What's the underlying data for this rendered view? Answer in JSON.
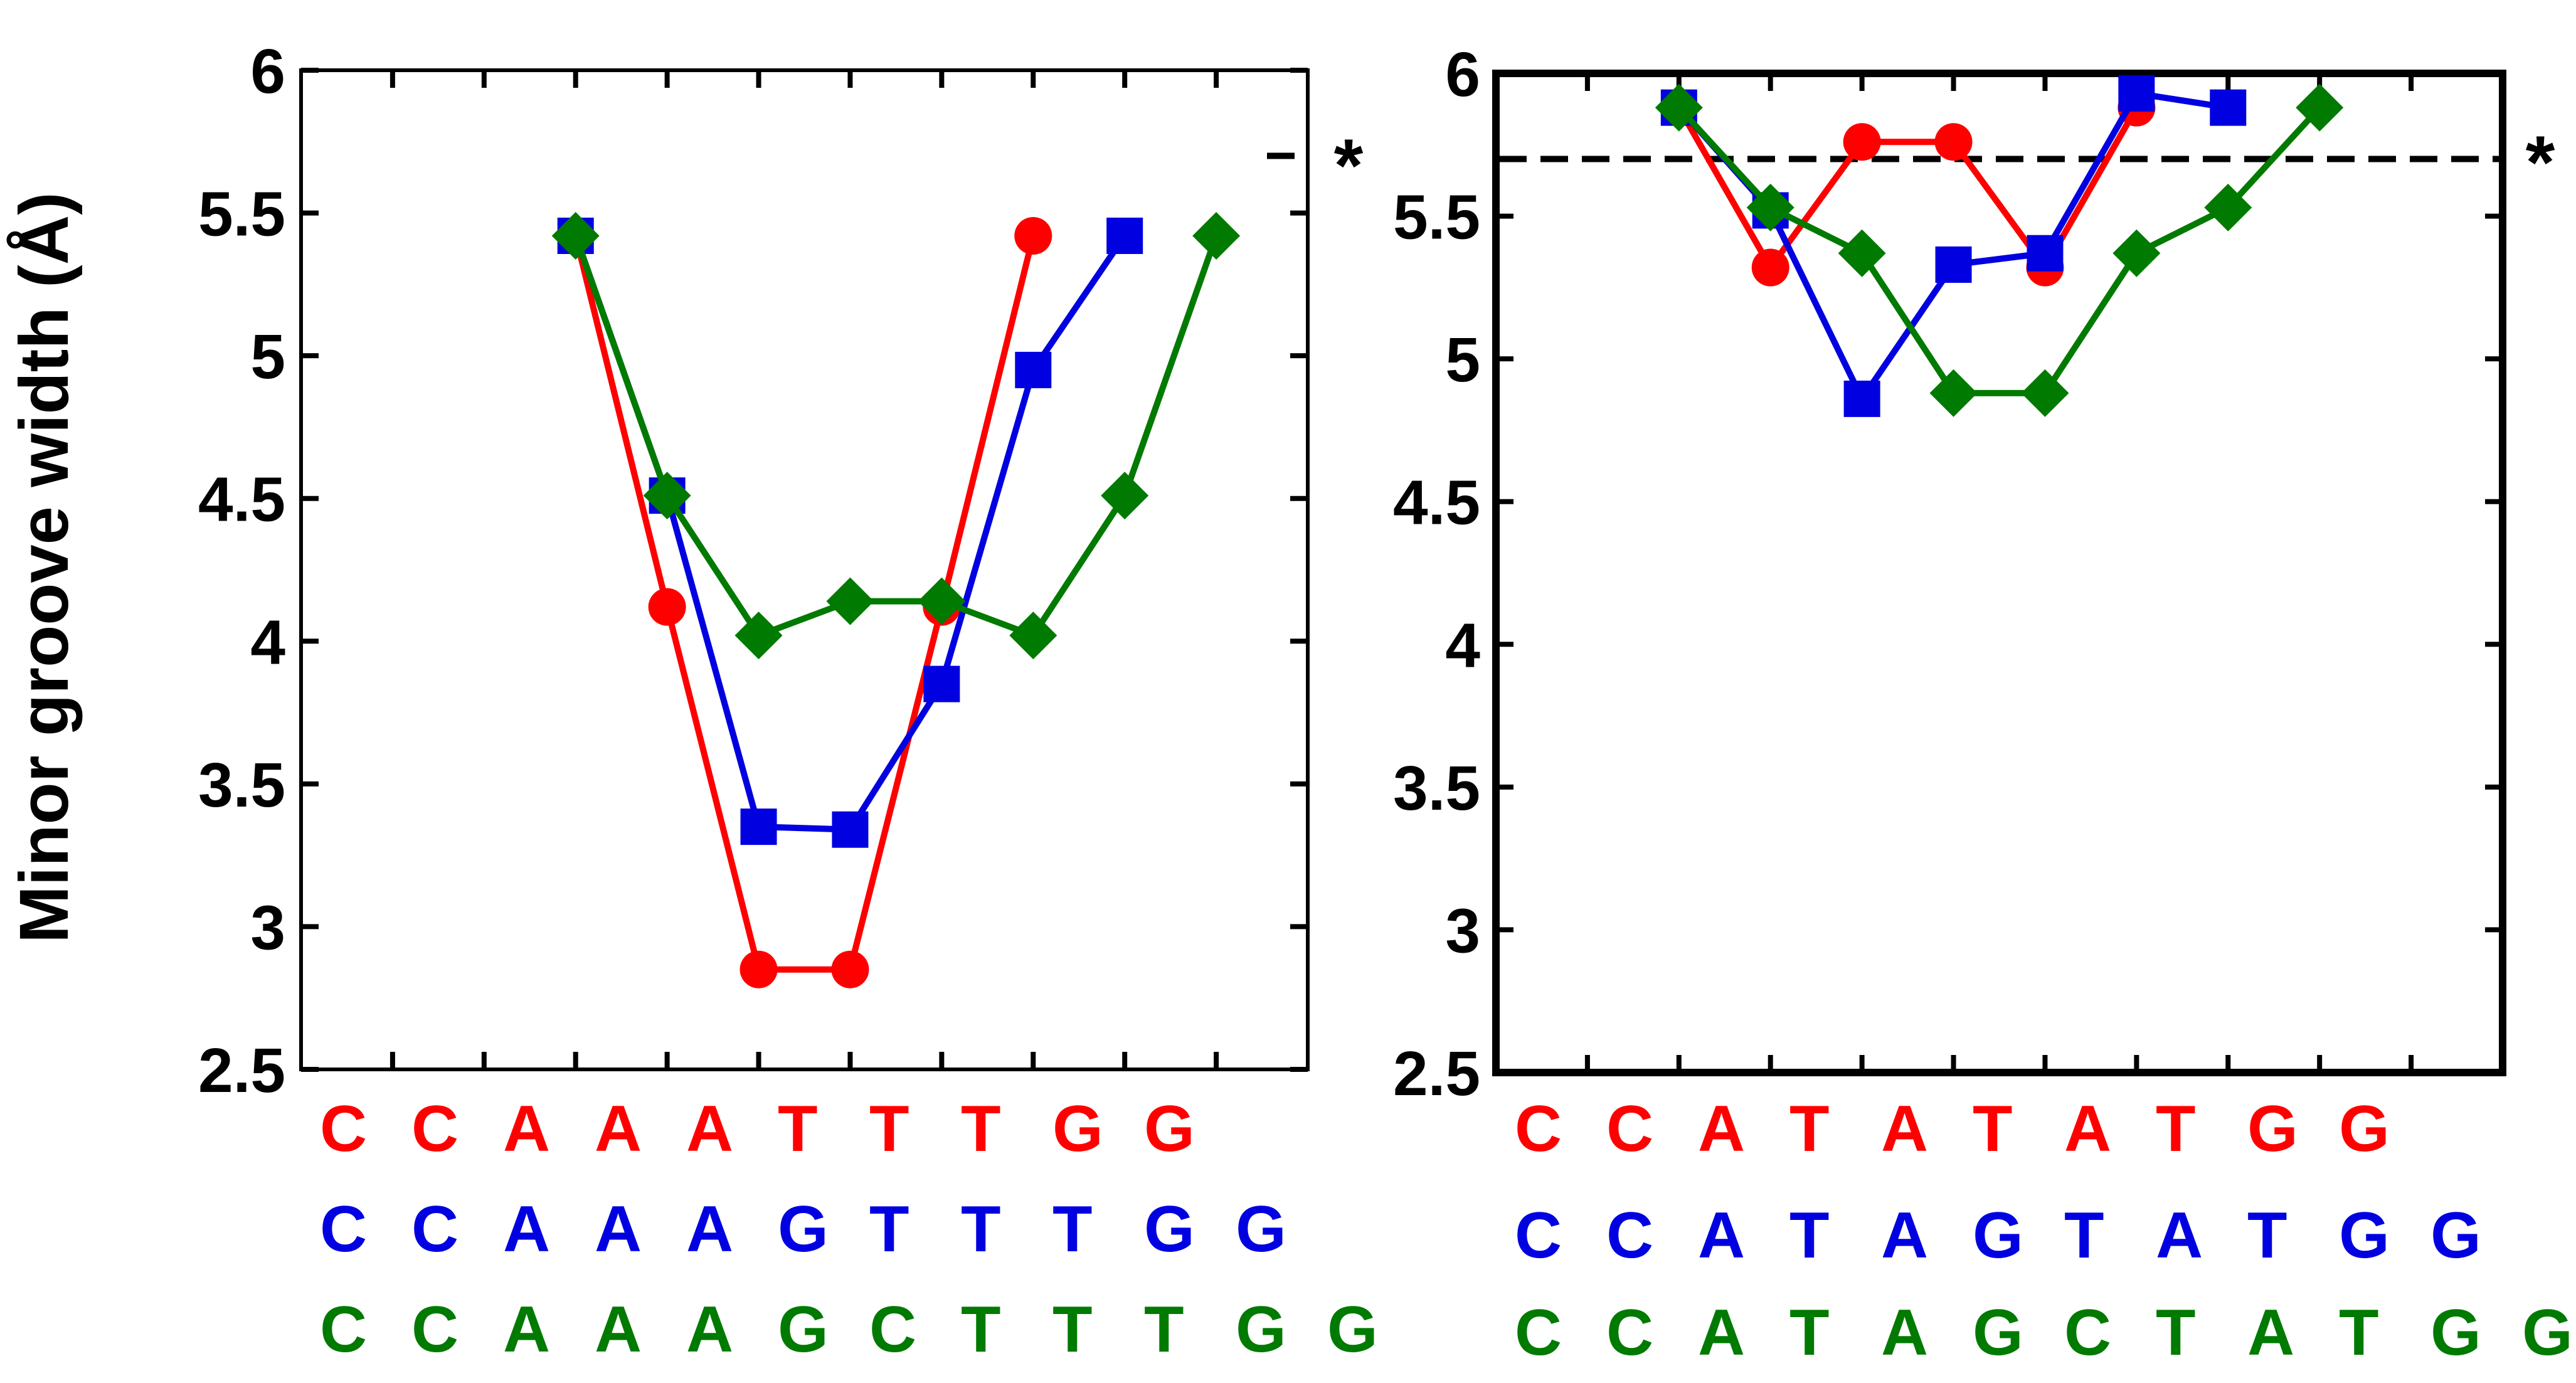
{
  "chart_data": [
    {
      "type": "line",
      "panel": "left",
      "ylabel": "Minor groove width (Å)",
      "ylim": [
        2.5,
        6
      ],
      "yticks": [
        "2.5",
        "3",
        "3.5",
        "4",
        "4.5",
        "5",
        "5.5",
        "6"
      ],
      "x_positions": 11,
      "reference_line": {
        "y": 5.7,
        "style": "dashed",
        "annotation": "*"
      },
      "series": [
        {
          "name": "CCAAATTTGG",
          "color": "#ff0000",
          "marker": "circle",
          "x": [
            3,
            4,
            5,
            6,
            7,
            8
          ],
          "y": [
            5.42,
            4.12,
            2.85,
            2.85,
            4.12,
            5.42
          ]
        },
        {
          "name": "CCAAAGTTTGG",
          "color": "#0000e0",
          "marker": "square",
          "x": [
            3,
            4,
            5,
            6,
            7,
            8,
            9
          ],
          "y": [
            5.42,
            4.51,
            3.35,
            3.34,
            3.85,
            4.95,
            5.42
          ]
        },
        {
          "name": "CCAAAGCTTTGG",
          "color": "#007a00",
          "marker": "diamond",
          "x": [
            3,
            4,
            5,
            6,
            7,
            8,
            9,
            10
          ],
          "y": [
            5.42,
            4.51,
            4.02,
            4.14,
            4.14,
            4.02,
            4.51,
            5.42
          ]
        }
      ],
      "sequences": [
        {
          "color": "#ff0000",
          "letters": [
            "C",
            "C",
            "A",
            "A",
            "A",
            "T",
            "T",
            "T",
            "G",
            "G"
          ]
        },
        {
          "color": "#0000e0",
          "letters": [
            "C",
            "C",
            "A",
            "A",
            "A",
            "G",
            "T",
            "T",
            "T",
            "G",
            "G"
          ]
        },
        {
          "color": "#007a00",
          "letters": [
            "C",
            "C",
            "A",
            "A",
            "A",
            "G",
            "C",
            "T",
            "T",
            "T",
            "G",
            "G"
          ]
        }
      ]
    },
    {
      "type": "line",
      "panel": "right",
      "ylim": [
        2.5,
        6
      ],
      "yticks": [
        "2.5",
        "3",
        "3.5",
        "4",
        "4.5",
        "5",
        "5.5",
        "6"
      ],
      "x_positions": 11,
      "reference_line": {
        "y": 5.7,
        "style": "dashed",
        "annotation": "*"
      },
      "series": [
        {
          "name": "CCATATATGG",
          "color": "#ff0000",
          "marker": "circle",
          "x": [
            2,
            3,
            4,
            5,
            6,
            7
          ],
          "y": [
            5.88,
            5.32,
            5.76,
            5.76,
            5.32,
            5.88
          ]
        },
        {
          "name": "CCATAGTATGG",
          "color": "#0000e0",
          "marker": "square",
          "x": [
            2,
            3,
            4,
            5,
            6,
            7,
            8
          ],
          "y": [
            5.88,
            5.52,
            4.86,
            5.33,
            5.37,
            5.93,
            5.88
          ]
        },
        {
          "name": "CCATAGCTATGG",
          "color": "#007a00",
          "marker": "diamond",
          "x": [
            2,
            3,
            4,
            5,
            6,
            7,
            8,
            9
          ],
          "y": [
            5.88,
            5.53,
            5.37,
            4.88,
            4.88,
            5.37,
            5.53,
            5.88
          ]
        }
      ],
      "sequences": [
        {
          "color": "#ff0000",
          "letters": [
            "C",
            "C",
            "A",
            "T",
            "A",
            "T",
            "A",
            "T",
            "G",
            "G"
          ]
        },
        {
          "color": "#0000e0",
          "letters": [
            "C",
            "C",
            "A",
            "T",
            "A",
            "G",
            "T",
            "A",
            "T",
            "G",
            "G"
          ]
        },
        {
          "color": "#007a00",
          "letters": [
            "C",
            "C",
            "A",
            "T",
            "A",
            "G",
            "C",
            "T",
            "A",
            "T",
            "G",
            "G"
          ]
        }
      ]
    }
  ]
}
